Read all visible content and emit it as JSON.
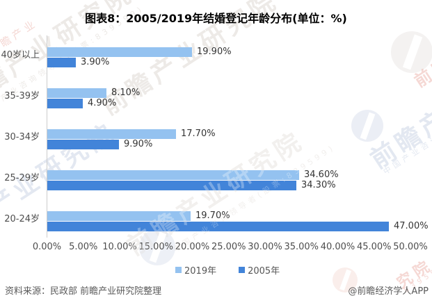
{
  "title": "图表8：2005/2019年结婚登记年龄分布(单位：%)",
  "chart_data": {
    "type": "bar",
    "orientation": "horizontal",
    "categories": [
      "40岁以上",
      "35-39岁",
      "30-34岁",
      "25-29岁",
      "20-24岁"
    ],
    "series": [
      {
        "name": "2019年",
        "color": "#94C2F0",
        "values": [
          19.9,
          8.1,
          17.7,
          34.6,
          19.7
        ]
      },
      {
        "name": "2005年",
        "color": "#4284D9",
        "values": [
          3.9,
          4.9,
          9.9,
          34.3,
          47.0
        ]
      }
    ],
    "value_label_format": "0.00%",
    "xlim": [
      0,
      50
    ],
    "x_tick_step": 5,
    "x_tick_labels": [
      "0.00%",
      "5.00%",
      "10.00%",
      "15.00%",
      "20.00%",
      "25.00%",
      "30.00%",
      "35.00%",
      "40.00%",
      "45.00%",
      "50.00%"
    ],
    "legend_position": "bottom",
    "grid": false
  },
  "footer": {
    "source": "资料来源：民政部 前瞻产业研究院整理",
    "credit": "@前瞻经济学人APP"
  },
  "watermark": {
    "text": "前瞻产业研究院",
    "subtext": "中国产业咨询领导者(股票:839599)",
    "digits": "839599",
    "logo": "qianzhan-logo"
  }
}
